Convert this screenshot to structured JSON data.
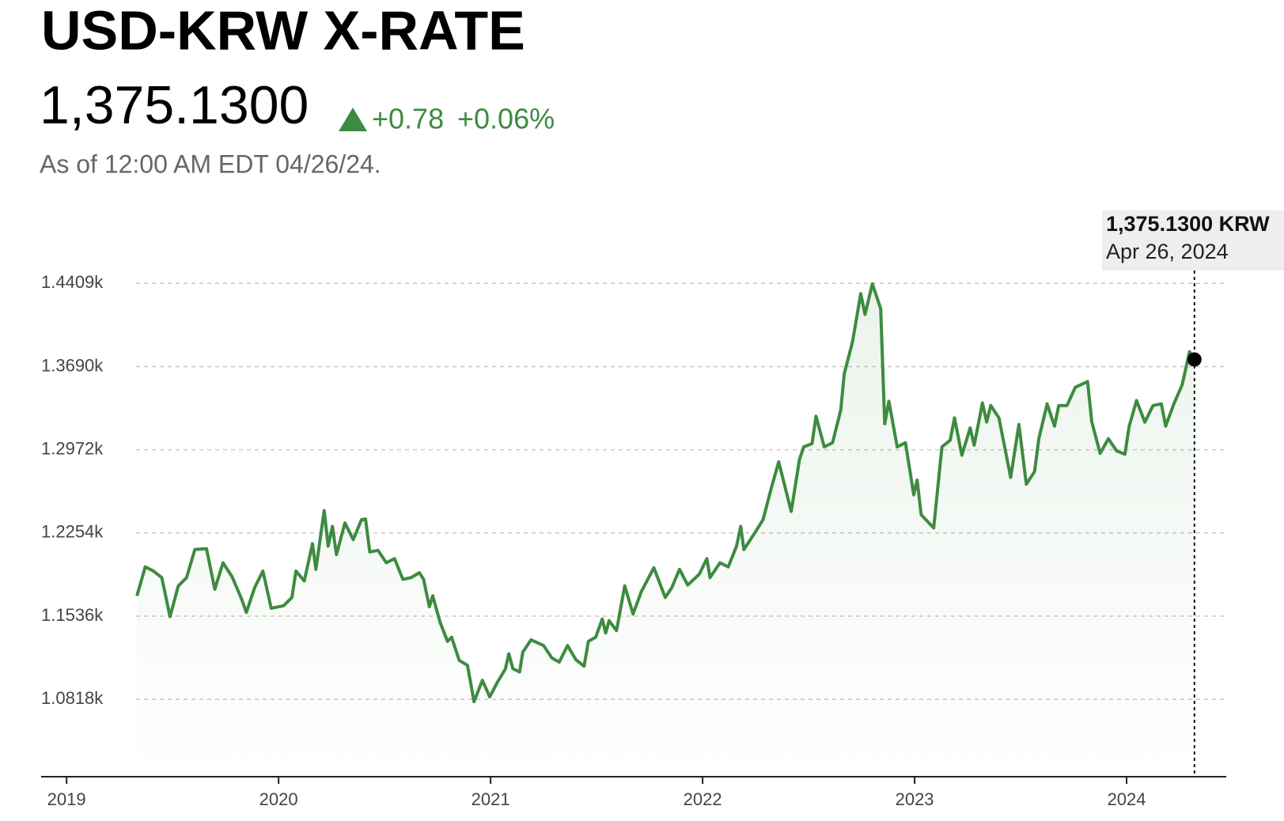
{
  "chart_data": {
    "type": "line",
    "title": "USD-KRW X-RATE",
    "price": "1,375.1300",
    "change": "+0.78",
    "change_pct": "+0.06%",
    "as_of": "As of 12:00 AM EDT 04/26/24.",
    "tooltip": {
      "label": "1,375.1300 KRW",
      "date": "Apr 26, 2024"
    },
    "color": "#3d8b40",
    "grid": true,
    "xlim": [
      2018.88,
      2024.47
    ],
    "xticks": [
      2019,
      2020,
      2021,
      2022,
      2023,
      2024
    ],
    "ylim": [
      1015,
      1441
    ],
    "yticks": [
      {
        "value": 1081.8,
        "label": "1.0818k"
      },
      {
        "value": 1153.6,
        "label": "1.1536k"
      },
      {
        "value": 1225.4,
        "label": "1.2254k"
      },
      {
        "value": 1297.2,
        "label": "1.2972k"
      },
      {
        "value": 1369.0,
        "label": "1.3690k"
      },
      {
        "value": 1440.9,
        "label": "1.4409k"
      }
    ],
    "x": [
      2019.332,
      2019.371,
      2019.41,
      2019.449,
      2019.488,
      2019.527,
      2019.566,
      2019.605,
      2019.66,
      2019.699,
      2019.738,
      2019.781,
      2019.824,
      2019.848,
      2019.887,
      2019.926,
      2019.965,
      2020.023,
      2020.063,
      2020.082,
      2020.121,
      2020.16,
      2020.176,
      2020.215,
      2020.234,
      2020.254,
      2020.273,
      2020.313,
      2020.352,
      2020.391,
      2020.41,
      2020.43,
      2020.469,
      2020.508,
      2020.547,
      2020.586,
      2020.625,
      2020.664,
      2020.684,
      2020.711,
      2020.727,
      2020.762,
      2020.797,
      2020.816,
      2020.852,
      2020.891,
      2020.922,
      2020.961,
      2020.996,
      2021.031,
      2021.07,
      2021.086,
      2021.105,
      2021.137,
      2021.152,
      2021.191,
      2021.25,
      2021.289,
      2021.324,
      2021.363,
      2021.402,
      2021.441,
      2021.461,
      2021.496,
      2021.527,
      2021.543,
      2021.559,
      2021.594,
      2021.633,
      2021.672,
      2021.711,
      2021.77,
      2021.809,
      2021.824,
      2021.855,
      2021.891,
      2021.93,
      2021.984,
      2022.02,
      2022.035,
      2022.082,
      2022.121,
      2022.16,
      2022.18,
      2022.195,
      2022.246,
      2022.285,
      2022.324,
      2022.359,
      2022.418,
      2022.457,
      2022.477,
      2022.516,
      2022.535,
      2022.574,
      2022.613,
      2022.652,
      2022.668,
      2022.707,
      2022.746,
      2022.766,
      2022.801,
      2022.84,
      2022.859,
      2022.879,
      2022.918,
      2022.957,
      2022.996,
      2023.012,
      2023.031,
      2023.09,
      2023.129,
      2023.168,
      2023.188,
      2023.223,
      2023.262,
      2023.281,
      2023.32,
      2023.34,
      2023.359,
      2023.398,
      2023.453,
      2023.492,
      2023.527,
      2023.566,
      2023.586,
      2023.625,
      2023.66,
      2023.68,
      2023.719,
      2023.758,
      2023.816,
      2023.836,
      2023.875,
      2023.914,
      2023.953,
      2023.992,
      2024.012,
      2024.047,
      2024.086,
      2024.125,
      2024.164,
      2024.184,
      2024.223,
      2024.262,
      2024.297,
      2024.32
    ],
    "values": [
      1171.1,
      1196.1,
      1192.5,
      1186.8,
      1153.2,
      1179.7,
      1186.8,
      1211.1,
      1211.8,
      1176.8,
      1199.7,
      1187.5,
      1169.0,
      1156.8,
      1178.2,
      1192.5,
      1160.4,
      1162.5,
      1169.7,
      1192.5,
      1184.0,
      1216.1,
      1194.0,
      1244.7,
      1214.0,
      1231.1,
      1206.8,
      1234.0,
      1219.7,
      1236.8,
      1237.5,
      1209.0,
      1210.4,
      1199.7,
      1203.2,
      1185.4,
      1186.8,
      1191.1,
      1185.4,
      1161.8,
      1171.1,
      1148.2,
      1131.8,
      1135.4,
      1115.4,
      1111.1,
      1079.7,
      1098.2,
      1083.9,
      1096.1,
      1108.2,
      1121.1,
      1108.2,
      1105.4,
      1122.5,
      1133.2,
      1128.2,
      1117.5,
      1113.9,
      1128.2,
      1116.1,
      1110.4,
      1131.8,
      1135.4,
      1151.1,
      1139.0,
      1149.7,
      1141.1,
      1179.7,
      1155.4,
      1174.7,
      1195.4,
      1176.8,
      1169.7,
      1178.2,
      1194.0,
      1180.4,
      1189.7,
      1203.2,
      1186.8,
      1199.7,
      1196.1,
      1214.0,
      1231.1,
      1211.1,
      1225.4,
      1236.8,
      1264.0,
      1286.8,
      1244.0,
      1289.0,
      1299.7,
      1302.5,
      1326.1,
      1299.7,
      1303.3,
      1331.8,
      1362.6,
      1390.4,
      1431.9,
      1414.0,
      1440.4,
      1419.0,
      1319.7,
      1339.0,
      1299.7,
      1303.3,
      1258.3,
      1271.1,
      1241.1,
      1229.7,
      1299.7,
      1305.4,
      1324.7,
      1292.5,
      1316.1,
      1301.1,
      1337.6,
      1321.1,
      1335.4,
      1324.7,
      1273.3,
      1319.0,
      1267.5,
      1278.3,
      1306.8,
      1336.8,
      1317.6,
      1335.4,
      1335.4,
      1351.1,
      1356.1,
      1321.1,
      1294.0,
      1306.8,
      1296.1,
      1293.3,
      1317.6,
      1339.7,
      1321.1,
      1335.4,
      1336.8,
      1317.6,
      1336.8,
      1353.3,
      1381.8,
      1375.13
    ]
  }
}
